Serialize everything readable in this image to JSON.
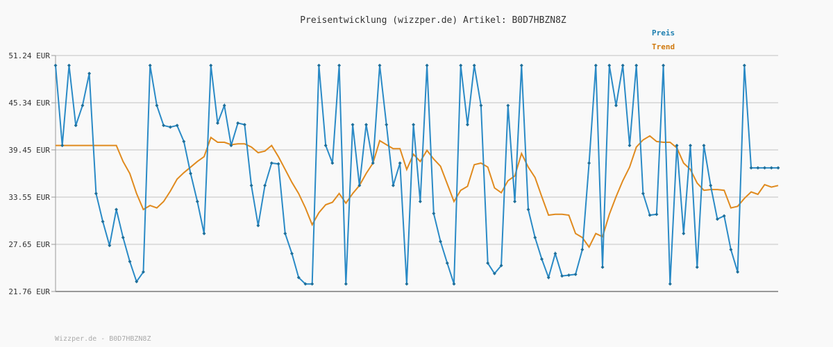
{
  "colors": {
    "background": "#f9f9f9",
    "grid": "#dddddd",
    "axis": "#999999",
    "price_line": "#2a8ac6",
    "price_marker": "#1f6f99",
    "trend_line": "#e08a1e",
    "price_legend": "#1e7fb0",
    "trend_legend": "#d07a10"
  },
  "footer": "Wizzper.de - B0D7HBZN8Z",
  "chart_data": {
    "type": "line",
    "title": "Preisentwicklung (wizzper.de) Artikel: B0D7HBZN8Z",
    "xlabel": "",
    "ylabel": "",
    "ylim": [
      21.76,
      51.24
    ],
    "y_ticks": [
      51.24,
      45.34,
      39.45,
      33.55,
      27.65,
      21.76
    ],
    "y_tick_labels": [
      "51.24 EUR",
      "45.34 EUR",
      "39.45 EUR",
      "33.55 EUR",
      "27.65 EUR",
      "21.76 EUR"
    ],
    "grid": true,
    "legend_position": "top-right",
    "series": [
      {
        "name": "Preis",
        "markers": true,
        "values": [
          50.0,
          40.0,
          50.0,
          42.5,
          45.0,
          49.0,
          34.0,
          30.5,
          27.5,
          32.0,
          28.5,
          25.5,
          23.0,
          24.2,
          50.0,
          45.0,
          42.5,
          42.3,
          42.5,
          40.5,
          36.5,
          33.0,
          29.0,
          50.0,
          42.8,
          45.0,
          40.0,
          42.8,
          42.6,
          35.0,
          30.0,
          35.0,
          37.8,
          37.7,
          29.0,
          26.5,
          23.5,
          22.7,
          22.7,
          50.0,
          40.0,
          37.8,
          50.0,
          22.7,
          42.6,
          35.0,
          42.6,
          37.8,
          50.0,
          42.6,
          35.0,
          37.8,
          22.7,
          42.6,
          33.0,
          50.0,
          31.5,
          28.0,
          25.3,
          22.7,
          50.0,
          42.6,
          50.0,
          45.0,
          25.3,
          24.0,
          25.0,
          45.0,
          33.0,
          50.0,
          32.0,
          28.5,
          25.8,
          23.5,
          26.5,
          23.7,
          23.8,
          23.9,
          27.0,
          37.8,
          50.0,
          24.8,
          50.0,
          45.0,
          50.0,
          40.0,
          50.0,
          34.0,
          31.3,
          31.4,
          50.0,
          22.7,
          40.0,
          29.0,
          40.0,
          24.8,
          40.0,
          35.0,
          30.8,
          31.2,
          27.0,
          24.2,
          50.0,
          37.2,
          37.2,
          37.2,
          37.2,
          37.2
        ]
      },
      {
        "name": "Trend",
        "markers": false,
        "values": [
          40.0,
          40.0,
          40.0,
          40.0,
          40.0,
          40.0,
          40.0,
          40.0,
          40.0,
          40.0,
          38.0,
          36.5,
          34.0,
          32.0,
          32.5,
          32.2,
          33.0,
          34.3,
          35.8,
          36.6,
          37.3,
          38.0,
          38.6,
          41.0,
          40.4,
          40.4,
          40.1,
          40.2,
          40.2,
          39.8,
          39.1,
          39.3,
          40.0,
          38.6,
          37.0,
          35.4,
          34.0,
          32.2,
          30.1,
          31.6,
          32.6,
          32.9,
          34.0,
          32.8,
          34.0,
          35.0,
          36.5,
          37.8,
          40.6,
          40.1,
          39.6,
          39.6,
          37.0,
          38.9,
          38.0,
          39.4,
          38.3,
          37.4,
          35.2,
          33.0,
          34.4,
          34.9,
          37.6,
          37.8,
          37.3,
          34.7,
          34.1,
          35.6,
          36.2,
          39.0,
          37.3,
          36.0,
          33.6,
          31.3,
          31.4,
          31.4,
          31.3,
          29.0,
          28.5,
          27.3,
          29.0,
          28.6,
          31.4,
          33.6,
          35.6,
          37.3,
          39.8,
          40.7,
          41.2,
          40.5,
          40.4,
          40.4,
          39.7,
          37.8,
          37.0,
          35.3,
          34.4,
          34.5,
          34.5,
          34.4,
          32.2,
          32.4,
          33.4,
          34.2,
          33.9,
          35.1,
          34.8,
          35.0
        ]
      }
    ]
  }
}
